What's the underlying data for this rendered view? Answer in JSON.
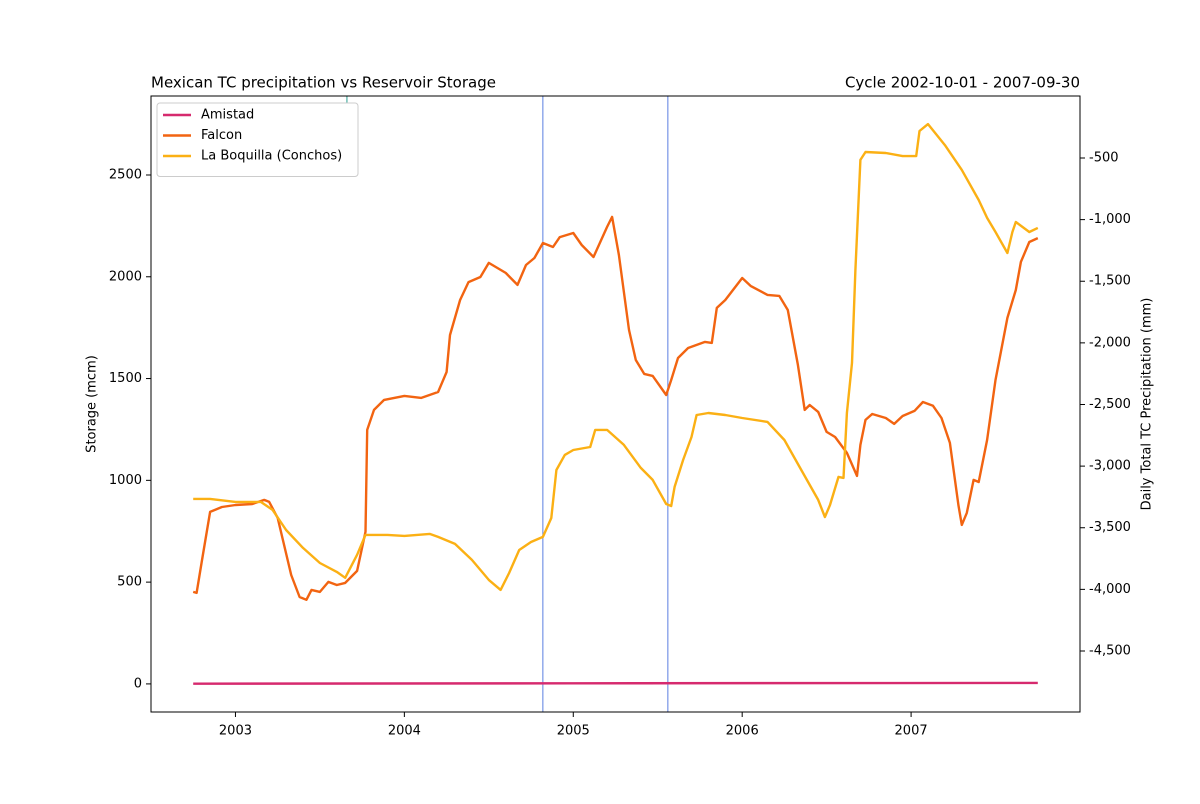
{
  "chart_data": {
    "type": "line",
    "title": "Mexican TC precipitation vs Reservoir Storage",
    "subtitle": "Cycle 2002-10-01 - 2007-09-30",
    "ylabel": "Storage (mcm)",
    "y2label": "Daily Total TC Precipitation (mm)",
    "xlim": [
      2002.5,
      2008.0
    ],
    "xticks": [
      2003,
      2004,
      2005,
      2006,
      2007
    ],
    "ylim": [
      -138,
      2888
    ],
    "yticks": [
      0,
      500,
      1000,
      1500,
      2000,
      2500
    ],
    "y2lim": [
      -4995,
      3
    ],
    "y2ticks": [
      {
        "value": -4500,
        "label": "-4,500"
      },
      {
        "value": -4000,
        "label": "-4,000"
      },
      {
        "value": -3500,
        "label": "-3,500"
      },
      {
        "value": -3000,
        "label": "-3,000"
      },
      {
        "value": -2500,
        "label": "-2,500"
      },
      {
        "value": -2000,
        "label": "-2,000"
      },
      {
        "value": -1500,
        "label": "-1,500"
      },
      {
        "value": -1000,
        "label": "-1,000"
      },
      -500
    ],
    "legend": "upper left",
    "series": [
      {
        "name": "Amistad",
        "color": "#d62a6e",
        "x": [
          2002.75,
          2005.0,
          2007.75
        ],
        "values": [
          1,
          3,
          5
        ]
      },
      {
        "name": "Falcon",
        "color": "#f26411",
        "x": [
          2002.75,
          2002.77,
          2002.8,
          2002.85,
          2002.92,
          2003.0,
          2003.1,
          2003.17,
          2003.2,
          2003.25,
          2003.33,
          2003.38,
          2003.42,
          2003.45,
          2003.5,
          2003.55,
          2003.6,
          2003.65,
          2003.72,
          2003.77,
          2003.78,
          2003.82,
          2003.88,
          2004.0,
          2004.1,
          2004.2,
          2004.25,
          2004.27,
          2004.33,
          2004.38,
          2004.45,
          2004.5,
          2004.6,
          2004.67,
          2004.72,
          2004.77,
          2004.82,
          2004.88,
          2004.92,
          2005.0,
          2005.05,
          2005.12,
          2005.2,
          2005.23,
          2005.27,
          2005.33,
          2005.37,
          2005.42,
          2005.47,
          2005.55,
          2005.58,
          2005.62,
          2005.68,
          2005.78,
          2005.82,
          2005.85,
          2005.9,
          2006.0,
          2006.05,
          2006.15,
          2006.22,
          2006.27,
          2006.33,
          2006.37,
          2006.4,
          2006.45,
          2006.5,
          2006.55,
          2006.62,
          2006.68,
          2006.7,
          2006.73,
          2006.77,
          2006.85,
          2006.9,
          2006.95,
          2007.02,
          2007.07,
          2007.13,
          2007.18,
          2007.23,
          2007.28,
          2007.3,
          2007.33,
          2007.37,
          2007.4,
          2007.45,
          2007.5,
          2007.57,
          2007.62,
          2007.65,
          2007.7,
          2007.75
        ],
        "values": [
          452,
          447,
          599,
          845,
          869,
          879,
          884,
          904,
          894,
          815,
          535,
          427,
          413,
          462,
          452,
          501,
          486,
          496,
          555,
          747,
          1248,
          1346,
          1395,
          1415,
          1405,
          1434,
          1532,
          1714,
          1886,
          1974,
          1999,
          2068,
          2019,
          1960,
          2058,
          2092,
          2166,
          2146,
          2195,
          2215,
          2156,
          2097,
          2245,
          2294,
          2107,
          1739,
          1591,
          1523,
          1513,
          1419,
          1493,
          1601,
          1650,
          1680,
          1675,
          1847,
          1886,
          1994,
          1955,
          1911,
          1906,
          1837,
          1567,
          1346,
          1370,
          1336,
          1238,
          1213,
          1135,
          1022,
          1174,
          1297,
          1326,
          1306,
          1277,
          1316,
          1341,
          1385,
          1366,
          1306,
          1184,
          879,
          781,
          840,
          1002,
          992,
          1198,
          1493,
          1798,
          1935,
          2073,
          2171,
          2190
        ]
      },
      {
        "name": "La Boquilla (Conchos)",
        "color": "#fbb014",
        "x": [
          2002.75,
          2002.85,
          2003.0,
          2003.15,
          2003.22,
          2003.3,
          2003.4,
          2003.5,
          2003.6,
          2003.65,
          2003.68,
          2003.72,
          2003.77,
          2003.8,
          2003.9,
          2004.0,
          2004.15,
          2004.2,
          2004.3,
          2004.4,
          2004.5,
          2004.57,
          2004.62,
          2004.68,
          2004.75,
          2004.82,
          2004.87,
          2004.9,
          2004.95,
          2005.0,
          2005.1,
          2005.13,
          2005.2,
          2005.3,
          2005.4,
          2005.47,
          2005.55,
          2005.58,
          2005.6,
          2005.65,
          2005.7,
          2005.73,
          2005.8,
          2005.9,
          2006.0,
          2006.15,
          2006.25,
          2006.35,
          2006.45,
          2006.49,
          2006.52,
          2006.57,
          2006.6,
          2006.62,
          2006.65,
          2006.67,
          2006.7,
          2006.73,
          2006.85,
          2006.95,
          2007.03,
          2007.05,
          2007.1,
          2007.2,
          2007.3,
          2007.4,
          2007.45,
          2007.5,
          2007.57,
          2007.6,
          2007.62,
          2007.7,
          2007.75
        ],
        "values": [
          909,
          909,
          894,
          894,
          855,
          756,
          668,
          594,
          550,
          521,
          570,
          634,
          732,
          732,
          732,
          727,
          737,
          722,
          688,
          609,
          511,
          462,
          545,
          658,
          697,
          722,
          815,
          1051,
          1125,
          1149,
          1164,
          1248,
          1248,
          1174,
          1061,
          1002,
          884,
          874,
          968,
          1100,
          1213,
          1321,
          1331,
          1321,
          1306,
          1287,
          1198,
          1051,
          904,
          820,
          879,
          1017,
          1012,
          1331,
          1577,
          2033,
          2574,
          2613,
          2608,
          2593,
          2593,
          2716,
          2750,
          2647,
          2525,
          2377,
          2289,
          2220,
          2117,
          2220,
          2269,
          2220,
          2240
        ]
      }
    ],
    "tc_precipitation": {
      "axis": "y2",
      "x": [
        2003.66,
        2004.82,
        2005.56
      ],
      "values": [
        -135,
        -4995,
        -4995
      ],
      "colors": [
        "#2a9d8f",
        "#5b7fe0",
        "#5b7fe0"
      ]
    }
  }
}
